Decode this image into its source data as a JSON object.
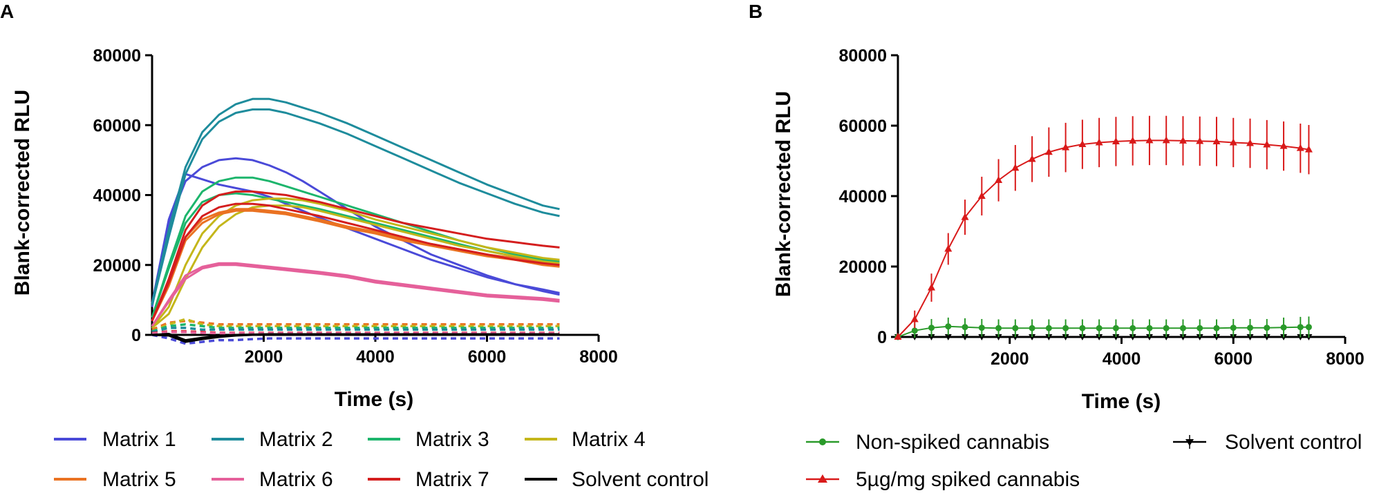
{
  "chart_data": [
    {
      "type": "line",
      "panel_label": "A",
      "xlabel": "Time (s)",
      "ylabel": "Blank-corrected RLU",
      "xlim": [
        0,
        8000
      ],
      "ylim": [
        0,
        80000
      ],
      "x_ticks": [
        2000,
        4000,
        6000,
        8000
      ],
      "y_ticks": [
        0,
        20000,
        40000,
        60000,
        80000
      ],
      "legend_position": "bottom",
      "x": [
        0,
        300,
        600,
        900,
        1200,
        1500,
        1800,
        2100,
        2400,
        2700,
        3000,
        3500,
        4000,
        4500,
        5000,
        5500,
        6000,
        6500,
        7000,
        7300
      ],
      "series": [
        {
          "name": "Matrix 1",
          "color": "#4a4ad8",
          "values": [
            8000,
            32000,
            44000,
            48000,
            50000,
            50500,
            50000,
            48500,
            46500,
            44000,
            41000,
            36000,
            31000,
            27000,
            23000,
            20000,
            17000,
            14500,
            12500,
            11500
          ],
          "replicate": [
            9000,
            33000,
            46000,
            44500,
            43000,
            42000,
            41000,
            39500,
            37500,
            35500,
            33500,
            30500,
            27500,
            24500,
            21500,
            19000,
            16500,
            14500,
            13000,
            12000
          ]
        },
        {
          "name": "Matrix 2",
          "color": "#1e8c9c",
          "values": [
            9000,
            30000,
            48000,
            58000,
            63000,
            66000,
            67500,
            67500,
            66500,
            65000,
            63500,
            60500,
            57000,
            53500,
            50000,
            46500,
            43000,
            40000,
            37000,
            36000
          ],
          "replicate": [
            8500,
            28000,
            46000,
            56000,
            61000,
            63500,
            64500,
            64500,
            63500,
            62000,
            60500,
            57500,
            54000,
            50500,
            47000,
            43500,
            40500,
            37500,
            35000,
            34000
          ]
        },
        {
          "name": "Matrix 3",
          "color": "#1db56c",
          "values": [
            5000,
            20000,
            34000,
            41000,
            44000,
            45000,
            45000,
            44000,
            42500,
            41000,
            39500,
            37000,
            34500,
            32000,
            29500,
            27000,
            25000,
            23000,
            21500,
            21000
          ],
          "replicate": [
            5000,
            19000,
            32000,
            38000,
            40000,
            40500,
            40000,
            39000,
            38000,
            37000,
            36000,
            34000,
            32000,
            30000,
            28000,
            26000,
            24000,
            22500,
            21000,
            20500
          ]
        },
        {
          "name": "Matrix 4",
          "color": "#c4b61a",
          "values": [
            2000,
            8000,
            20000,
            29000,
            34000,
            37000,
            38500,
            39000,
            39000,
            38500,
            37500,
            35500,
            33000,
            31000,
            29000,
            27000,
            25000,
            23500,
            22000,
            21500
          ],
          "replicate": [
            2000,
            6000,
            16000,
            25000,
            31000,
            34500,
            36500,
            37000,
            37000,
            36500,
            35500,
            33500,
            31500,
            29500,
            27500,
            25500,
            24000,
            22500,
            21000,
            20500
          ]
        },
        {
          "name": "Matrix 5",
          "color": "#ea7222",
          "values": [
            4000,
            15000,
            28000,
            33000,
            35000,
            36000,
            36000,
            35500,
            35000,
            34000,
            33000,
            31000,
            29500,
            27500,
            26000,
            24500,
            23000,
            22000,
            20500,
            20000
          ],
          "replicate": [
            4000,
            14000,
            27000,
            32000,
            34500,
            35500,
            35500,
            35000,
            34500,
            33500,
            32500,
            30500,
            29000,
            27000,
            25500,
            24000,
            22500,
            21500,
            20000,
            19500
          ]
        },
        {
          "name": "Matrix 6",
          "color": "#e5609a",
          "values": [
            2500,
            10000,
            17000,
            19500,
            20500,
            20500,
            20000,
            19500,
            19000,
            18500,
            18000,
            17000,
            15500,
            14500,
            13500,
            12500,
            11500,
            11000,
            10500,
            10000
          ],
          "replicate": [
            2500,
            9500,
            16000,
            19000,
            20000,
            20000,
            19500,
            19000,
            18500,
            18000,
            17500,
            16500,
            15000,
            14000,
            13000,
            12000,
            11000,
            10500,
            10000,
            9500
          ]
        },
        {
          "name": "Matrix 7",
          "color": "#d41e1e",
          "values": [
            4000,
            16000,
            30000,
            37000,
            40000,
            41000,
            41000,
            40500,
            40000,
            39000,
            38000,
            36000,
            34000,
            32000,
            30500,
            29000,
            27500,
            26500,
            25500,
            25000
          ],
          "replicate": [
            4000,
            15000,
            28000,
            34000,
            36500,
            37500,
            37500,
            37000,
            36000,
            35000,
            34000,
            32000,
            30000,
            28000,
            26000,
            24500,
            23000,
            21500,
            20500,
            20000
          ]
        },
        {
          "name": "Solvent control",
          "color": "#000000",
          "values": [
            0,
            300,
            -1500,
            -800,
            -300,
            0,
            100,
            200,
            200,
            200,
            200,
            200,
            200,
            200,
            200,
            200,
            200,
            200,
            200,
            200
          ],
          "replicate": [
            0,
            -200,
            -2000,
            -1200,
            -600,
            -200,
            0,
            100,
            100,
            100,
            100,
            100,
            100,
            100,
            100,
            100,
            100,
            100,
            100,
            100
          ]
        }
      ],
      "unspiked_dashed_traces": [
        {
          "color": "#ea7222",
          "values": [
            1500,
            3500,
            4000,
            3500,
            3000,
            3000,
            3000,
            3000,
            3000,
            3000,
            3000,
            3000,
            3000,
            3000,
            3000,
            3000,
            3000,
            3000,
            3000,
            3000
          ]
        },
        {
          "color": "#c4b61a",
          "values": [
            1000,
            3000,
            4500,
            3000,
            2500,
            2500,
            2500,
            2500,
            2500,
            2500,
            2500,
            2500,
            2500,
            2500,
            2500,
            2500,
            2500,
            2500,
            2500,
            2500
          ]
        },
        {
          "color": "#1db56c",
          "values": [
            1000,
            2500,
            3000,
            2500,
            2000,
            2000,
            2000,
            2000,
            2000,
            2000,
            2000,
            2000,
            2000,
            2000,
            2000,
            2000,
            2000,
            2000,
            2000,
            2000
          ]
        },
        {
          "color": "#1e8c9c",
          "values": [
            800,
            2000,
            2000,
            1500,
            1500,
            1500,
            1500,
            1500,
            1500,
            1500,
            1500,
            1500,
            1500,
            1500,
            1500,
            1500,
            1500,
            1500,
            1500,
            1500
          ]
        },
        {
          "color": "#d41e1e",
          "values": [
            500,
            1000,
            1000,
            800,
            600,
            600,
            600,
            600,
            600,
            600,
            600,
            600,
            600,
            600,
            600,
            600,
            600,
            600,
            600,
            600
          ]
        },
        {
          "color": "#e5609a",
          "values": [
            400,
            800,
            800,
            600,
            500,
            500,
            500,
            500,
            500,
            500,
            500,
            500,
            500,
            500,
            500,
            500,
            500,
            500,
            500,
            500
          ]
        },
        {
          "color": "#4a4ad8",
          "values": [
            0,
            -1000,
            -2500,
            -2000,
            -1500,
            -1500,
            -1200,
            -1000,
            -1000,
            -1000,
            -1000,
            -1000,
            -1000,
            -1000,
            -1000,
            -1000,
            -1000,
            -1000,
            -1000,
            -1000
          ]
        }
      ]
    },
    {
      "type": "line",
      "panel_label": "B",
      "xlabel": "Time (s)",
      "ylabel": "Blank-corrected RLU",
      "xlim": [
        0,
        8000
      ],
      "ylim": [
        0,
        80000
      ],
      "x_ticks": [
        2000,
        4000,
        6000,
        8000
      ],
      "y_ticks": [
        0,
        20000,
        40000,
        60000,
        80000
      ],
      "legend_position": "bottom",
      "x": [
        0,
        300,
        600,
        900,
        1200,
        1500,
        1800,
        2100,
        2400,
        2700,
        3000,
        3300,
        3600,
        3900,
        4200,
        4500,
        4800,
        5100,
        5400,
        5700,
        6000,
        6300,
        6600,
        6900,
        7200,
        7350
      ],
      "series": [
        {
          "name": "Non-spiked cannabis",
          "color": "#2a9a2a",
          "marker": "circle",
          "values": [
            0,
            1800,
            2600,
            3000,
            2800,
            2600,
            2500,
            2500,
            2500,
            2500,
            2500,
            2500,
            2500,
            2500,
            2500,
            2500,
            2500,
            2500,
            2500,
            2500,
            2600,
            2600,
            2600,
            2700,
            2800,
            2800
          ],
          "error": [
            0,
            2000,
            2500,
            2500,
            2500,
            2500,
            2500,
            2500,
            2500,
            2500,
            2500,
            2500,
            2500,
            2500,
            2500,
            2500,
            2500,
            2500,
            2500,
            2500,
            2500,
            2500,
            2500,
            2800,
            2900,
            3000
          ]
        },
        {
          "name": "5µg/mg spiked cannabis",
          "color": "#d91a1a",
          "marker": "triangle-up",
          "values": [
            0,
            5000,
            14000,
            25000,
            34000,
            40000,
            44500,
            48000,
            50500,
            52500,
            53800,
            54700,
            55200,
            55500,
            55700,
            55800,
            55800,
            55700,
            55600,
            55500,
            55200,
            55000,
            54600,
            54200,
            53600,
            53200
          ],
          "error": [
            0,
            2500,
            4000,
            4500,
            5000,
            5500,
            6000,
            6500,
            6500,
            7000,
            7000,
            7000,
            7000,
            7000,
            7000,
            7000,
            7000,
            7000,
            7000,
            7000,
            7000,
            7000,
            7000,
            7000,
            7000,
            7000
          ]
        },
        {
          "name": "Solvent control",
          "color": "#000000",
          "marker": "triangle-down",
          "values": [
            0,
            0,
            0,
            0,
            0,
            0,
            0,
            0,
            0,
            0,
            0,
            0,
            0,
            0,
            0,
            0,
            0,
            0,
            0,
            0,
            0,
            0,
            0,
            0,
            0,
            0
          ],
          "error": [
            0,
            300,
            300,
            300,
            300,
            300,
            300,
            300,
            300,
            300,
            300,
            300,
            300,
            300,
            300,
            300,
            300,
            300,
            300,
            300,
            300,
            300,
            300,
            300,
            300,
            300
          ]
        }
      ]
    }
  ]
}
